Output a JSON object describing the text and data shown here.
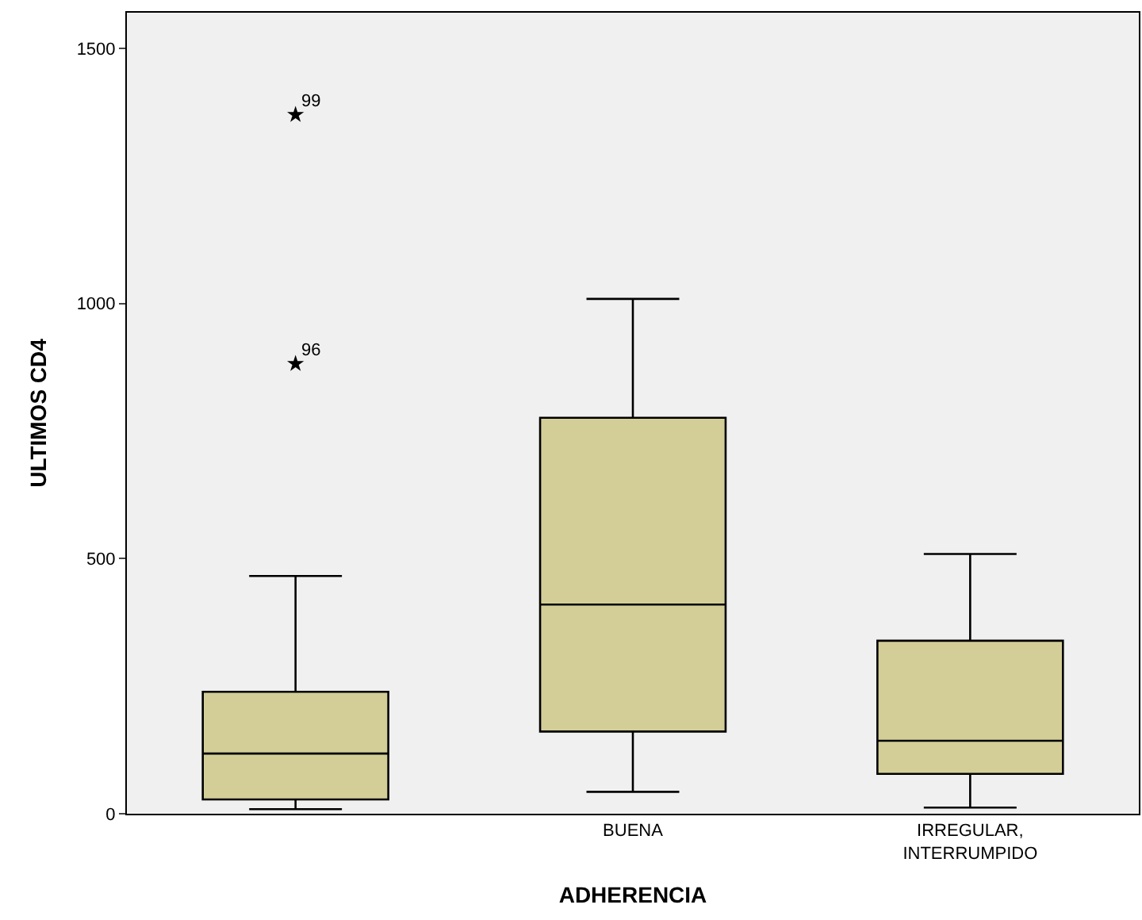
{
  "chart_data": {
    "type": "box",
    "xlabel": "ADHERENCIA",
    "ylabel": "ULTIMOS CD4",
    "categories": [
      null,
      "BUENA",
      "IRREGULAR,\nINTERRUMPIDO"
    ],
    "color": "#d3ce97",
    "boxes": [
      {
        "low": 9,
        "q1": 28,
        "median": 118,
        "q3": 239,
        "high": 466,
        "outliers": [
          1370,
          882
        ]
      },
      {
        "low": 43,
        "q1": 161,
        "median": 410,
        "q3": 776,
        "high": 1009
      },
      {
        "low": 12,
        "q1": 78,
        "median": 143,
        "q3": 339,
        "high": 509
      }
    ],
    "annotations": [
      "99",
      "96"
    ],
    "marker": "star",
    "ylim": [
      0,
      1570
    ],
    "yticks": [
      0,
      500,
      1000,
      1500
    ],
    "grid": false,
    "legend": false
  }
}
